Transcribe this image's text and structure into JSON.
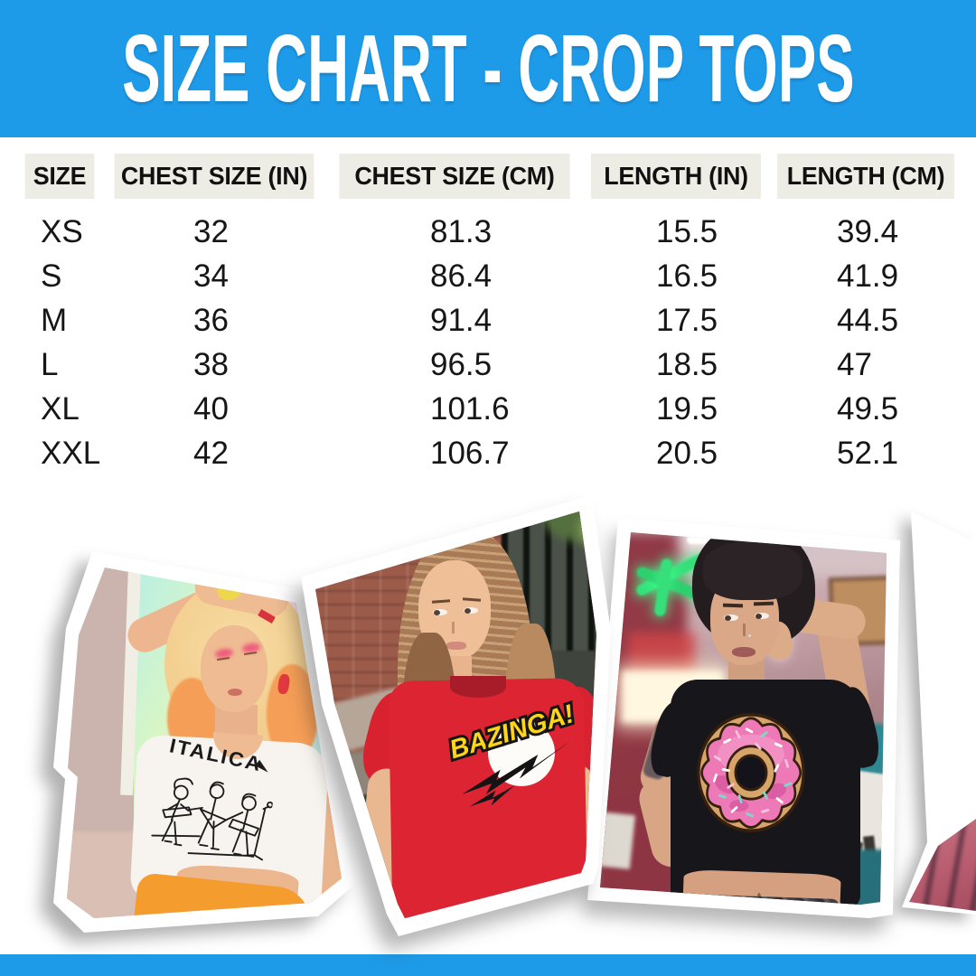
{
  "title": "SIZE CHART - CROP TOPS",
  "table": {
    "columns": [
      "SIZE",
      "CHEST SIZE (IN)",
      "CHEST SIZE (CM)",
      "LENGTH (IN)",
      "LENGTH (CM)"
    ],
    "rows": [
      [
        "XS",
        "32",
        "81.3",
        "15.5",
        "39.4"
      ],
      [
        "S",
        "34",
        "86.4",
        "16.5",
        "41.9"
      ],
      [
        "M",
        "36",
        "91.4",
        "17.5",
        "44.5"
      ],
      [
        "L",
        "38",
        "96.5",
        "18.5",
        "47"
      ],
      [
        "XL",
        "40",
        "101.6",
        "19.5",
        "49.5"
      ],
      [
        "XXL",
        "42",
        "106.7",
        "20.5",
        "52.1"
      ]
    ]
  },
  "photos": {
    "left": {
      "shirt_text": "ITALICA",
      "alt": "blonde model in white ITALICA band crop top"
    },
    "middle": {
      "shirt_text": "BAZINGA!",
      "alt": "model in red BAZINGA! crop top"
    },
    "right": {
      "alt": "model in black crop top with pink sprinkled donut"
    }
  },
  "colors": {
    "banner_blue": "#1E9BE8",
    "header_cell_bg": "#EEEDE5",
    "ink": "#141414",
    "bazinga_yellow": "#FFD617",
    "bazinga_red": "#DC2433",
    "donut_pink": "#EE79B7",
    "donut_dough": "#D7A469",
    "shirt_white": "#F7F3EE",
    "shirt_black": "#17161A"
  }
}
